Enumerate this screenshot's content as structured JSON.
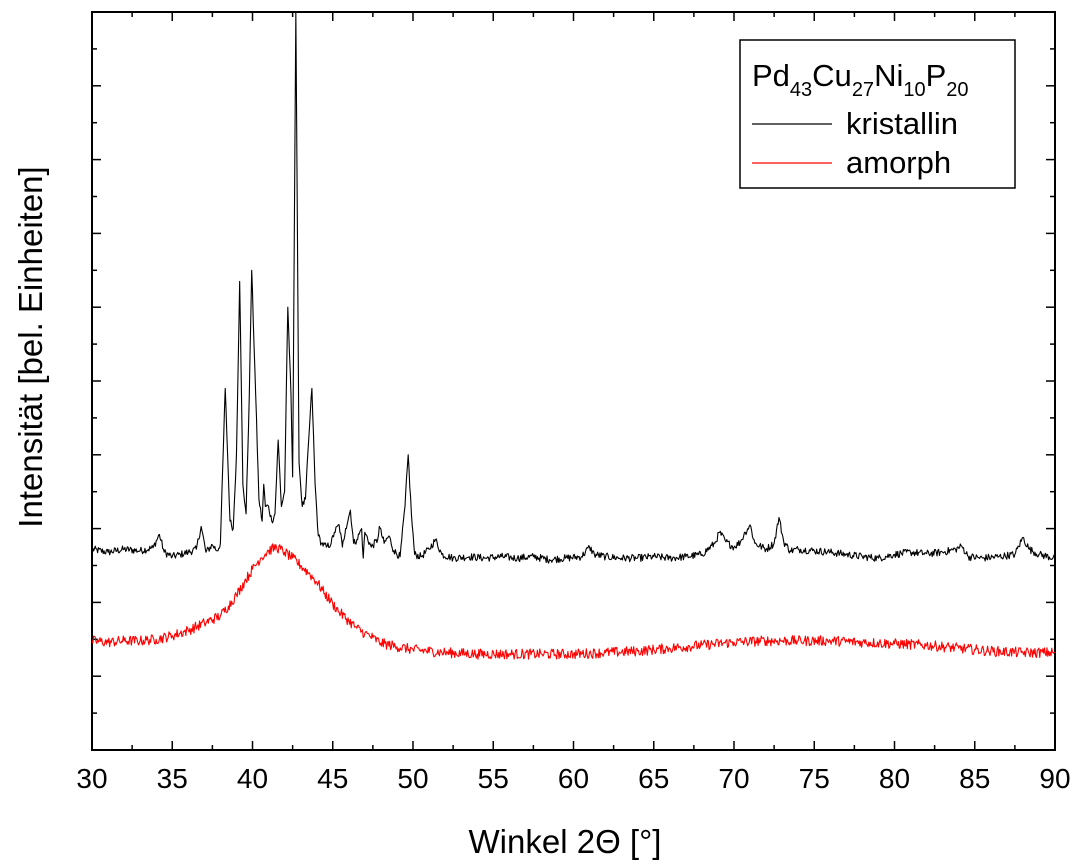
{
  "chart_data": {
    "type": "line",
    "title": "",
    "xlabel": "Winkel 2Θ [°]",
    "ylabel": "Intensität [bel. Einheiten]",
    "xlim": [
      30,
      90
    ],
    "ylim": [
      0,
      10
    ],
    "x_ticks": [
      30,
      35,
      40,
      45,
      50,
      55,
      60,
      65,
      70,
      75,
      80,
      85,
      90
    ],
    "x_tick_labels": [
      "30",
      "35",
      "40",
      "45",
      "50",
      "55",
      "60",
      "65",
      "70",
      "75",
      "80",
      "85",
      "90"
    ],
    "y_tick_labels_shown": false,
    "grid": false,
    "legend": {
      "position": "top-right",
      "title_parts": [
        {
          "text": "Pd",
          "sub": "43"
        },
        {
          "text": "Cu",
          "sub": "27"
        },
        {
          "text": "Ni",
          "sub": "10"
        },
        {
          "text": "P",
          "sub": "20"
        }
      ]
    },
    "series": [
      {
        "name": "kristallin",
        "color": "#000000",
        "points": [
          [
            30.0,
            2.72
          ],
          [
            31.0,
            2.68
          ],
          [
            32.0,
            2.72
          ],
          [
            33.0,
            2.7
          ],
          [
            33.8,
            2.74
          ],
          [
            34.2,
            2.92
          ],
          [
            34.5,
            2.68
          ],
          [
            35.0,
            2.62
          ],
          [
            35.5,
            2.65
          ],
          [
            36.0,
            2.68
          ],
          [
            36.5,
            2.72
          ],
          [
            36.8,
            3.03
          ],
          [
            37.1,
            2.68
          ],
          [
            37.5,
            2.78
          ],
          [
            37.8,
            2.7
          ],
          [
            38.0,
            2.8
          ],
          [
            38.3,
            4.9
          ],
          [
            38.6,
            3.1
          ],
          [
            38.8,
            3.0
          ],
          [
            39.0,
            4.0
          ],
          [
            39.2,
            6.35
          ],
          [
            39.4,
            3.6
          ],
          [
            39.6,
            3.2
          ],
          [
            39.8,
            4.8
          ],
          [
            39.95,
            6.5
          ],
          [
            40.2,
            4.8
          ],
          [
            40.4,
            3.4
          ],
          [
            40.6,
            3.1
          ],
          [
            40.7,
            3.6
          ],
          [
            40.8,
            3.3
          ],
          [
            41.0,
            3.3
          ],
          [
            41.2,
            3.1
          ],
          [
            41.4,
            3.2
          ],
          [
            41.6,
            4.2
          ],
          [
            41.8,
            3.3
          ],
          [
            42.0,
            3.5
          ],
          [
            42.2,
            6.0
          ],
          [
            42.4,
            4.8
          ],
          [
            42.5,
            3.7
          ],
          [
            42.7,
            10.0
          ],
          [
            42.9,
            3.9
          ],
          [
            43.1,
            3.3
          ],
          [
            43.3,
            3.4
          ],
          [
            43.5,
            4.2
          ],
          [
            43.7,
            4.9
          ],
          [
            43.9,
            3.6
          ],
          [
            44.1,
            2.9
          ],
          [
            44.3,
            2.8
          ],
          [
            44.6,
            2.75
          ],
          [
            44.9,
            2.8
          ],
          [
            45.1,
            2.95
          ],
          [
            45.4,
            3.05
          ],
          [
            45.6,
            2.75
          ],
          [
            45.8,
            3.0
          ],
          [
            46.1,
            3.25
          ],
          [
            46.3,
            2.8
          ],
          [
            46.5,
            2.85
          ],
          [
            46.8,
            3.0
          ],
          [
            46.9,
            2.6
          ],
          [
            47.0,
            2.95
          ],
          [
            47.4,
            2.75
          ],
          [
            47.8,
            2.85
          ],
          [
            47.9,
            3.03
          ],
          [
            48.2,
            2.8
          ],
          [
            48.5,
            2.9
          ],
          [
            48.8,
            2.7
          ],
          [
            49.2,
            2.62
          ],
          [
            49.5,
            3.3
          ],
          [
            49.7,
            4.0
          ],
          [
            49.9,
            3.2
          ],
          [
            50.1,
            2.65
          ],
          [
            50.5,
            2.62
          ],
          [
            51.0,
            2.72
          ],
          [
            51.4,
            2.85
          ],
          [
            51.8,
            2.65
          ],
          [
            52.5,
            2.6
          ],
          [
            53.5,
            2.62
          ],
          [
            54.5,
            2.6
          ],
          [
            55.5,
            2.62
          ],
          [
            56.5,
            2.6
          ],
          [
            57.5,
            2.62
          ],
          [
            58.5,
            2.58
          ],
          [
            59.5,
            2.6
          ],
          [
            60.5,
            2.62
          ],
          [
            61.0,
            2.75
          ],
          [
            61.3,
            2.65
          ],
          [
            62.0,
            2.62
          ],
          [
            63.0,
            2.6
          ],
          [
            64.0,
            2.6
          ],
          [
            65.0,
            2.62
          ],
          [
            66.0,
            2.6
          ],
          [
            67.0,
            2.62
          ],
          [
            68.0,
            2.65
          ],
          [
            68.8,
            2.8
          ],
          [
            69.1,
            2.95
          ],
          [
            69.5,
            2.82
          ],
          [
            70.0,
            2.75
          ],
          [
            70.4,
            2.82
          ],
          [
            70.7,
            2.95
          ],
          [
            71.0,
            3.05
          ],
          [
            71.3,
            2.8
          ],
          [
            72.0,
            2.72
          ],
          [
            72.5,
            2.8
          ],
          [
            72.8,
            3.15
          ],
          [
            73.1,
            2.82
          ],
          [
            73.5,
            2.7
          ],
          [
            74.0,
            2.72
          ],
          [
            75.0,
            2.7
          ],
          [
            76.0,
            2.68
          ],
          [
            77.0,
            2.65
          ],
          [
            78.0,
            2.62
          ],
          [
            79.0,
            2.6
          ],
          [
            80.0,
            2.65
          ],
          [
            81.0,
            2.68
          ],
          [
            82.0,
            2.66
          ],
          [
            83.0,
            2.68
          ],
          [
            83.8,
            2.72
          ],
          [
            84.2,
            2.76
          ],
          [
            84.6,
            2.62
          ],
          [
            85.5,
            2.6
          ],
          [
            86.5,
            2.62
          ],
          [
            87.5,
            2.65
          ],
          [
            88.0,
            2.88
          ],
          [
            88.4,
            2.72
          ],
          [
            89.0,
            2.65
          ],
          [
            90.0,
            2.6
          ]
        ]
      },
      {
        "name": "amorph",
        "color": "#ff0000",
        "points": [
          [
            30.0,
            1.48
          ],
          [
            31.0,
            1.46
          ],
          [
            32.0,
            1.48
          ],
          [
            33.0,
            1.48
          ],
          [
            34.0,
            1.5
          ],
          [
            35.0,
            1.55
          ],
          [
            36.0,
            1.62
          ],
          [
            37.0,
            1.72
          ],
          [
            38.0,
            1.82
          ],
          [
            38.5,
            1.95
          ],
          [
            39.0,
            2.1
          ],
          [
            39.5,
            2.28
          ],
          [
            40.0,
            2.45
          ],
          [
            40.5,
            2.6
          ],
          [
            41.0,
            2.7
          ],
          [
            41.5,
            2.75
          ],
          [
            42.0,
            2.68
          ],
          [
            42.5,
            2.6
          ],
          [
            43.0,
            2.5
          ],
          [
            43.5,
            2.4
          ],
          [
            44.0,
            2.28
          ],
          [
            44.5,
            2.12
          ],
          [
            45.0,
            1.98
          ],
          [
            45.5,
            1.85
          ],
          [
            46.0,
            1.75
          ],
          [
            46.5,
            1.65
          ],
          [
            47.0,
            1.58
          ],
          [
            47.5,
            1.52
          ],
          [
            48.0,
            1.45
          ],
          [
            49.0,
            1.4
          ],
          [
            50.0,
            1.36
          ],
          [
            52.0,
            1.32
          ],
          [
            54.0,
            1.3
          ],
          [
            56.0,
            1.3
          ],
          [
            58.0,
            1.3
          ],
          [
            60.0,
            1.3
          ],
          [
            62.0,
            1.32
          ],
          [
            64.0,
            1.34
          ],
          [
            66.0,
            1.38
          ],
          [
            68.0,
            1.42
          ],
          [
            70.0,
            1.46
          ],
          [
            72.0,
            1.48
          ],
          [
            74.0,
            1.48
          ],
          [
            76.0,
            1.48
          ],
          [
            78.0,
            1.46
          ],
          [
            80.0,
            1.44
          ],
          [
            82.0,
            1.42
          ],
          [
            84.0,
            1.38
          ],
          [
            86.0,
            1.34
          ],
          [
            88.0,
            1.32
          ],
          [
            90.0,
            1.32
          ]
        ]
      }
    ]
  }
}
